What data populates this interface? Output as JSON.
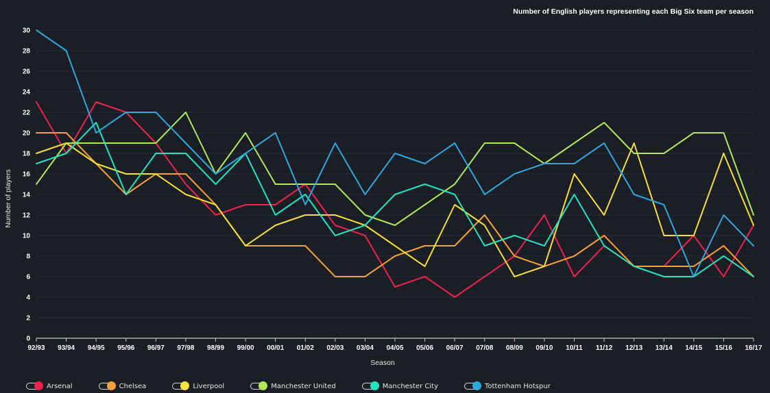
{
  "chart_data": {
    "type": "line",
    "title": "Number of English players representing each Big Six team per season",
    "xlabel": "Season",
    "ylabel": "Number of players",
    "ylim": [
      0,
      30
    ],
    "yticks": [
      0,
      2,
      4,
      6,
      8,
      10,
      12,
      14,
      16,
      18,
      20,
      22,
      24,
      26,
      28,
      30
    ],
    "grid": true,
    "legend_position": "bottom-left",
    "categories": [
      "92/93",
      "93/94",
      "94/95",
      "95/96",
      "96/97",
      "97/98",
      "98/99",
      "99/00",
      "00/01",
      "01/02",
      "02/03",
      "03/04",
      "04/05",
      "05/06",
      "06/07",
      "07/08",
      "08/09",
      "09/10",
      "10/11",
      "11/12",
      "12/13",
      "13/14",
      "14/15",
      "15/16",
      "16/17"
    ],
    "series": [
      {
        "name": "Arsenal",
        "color": "#f0234f",
        "values": [
          23,
          18,
          23,
          22,
          19,
          15,
          12,
          13,
          13,
          15,
          11,
          10,
          5,
          6,
          4,
          6,
          8,
          12,
          6,
          9,
          7,
          7,
          10,
          6,
          11
        ]
      },
      {
        "name": "Chelsea",
        "color": "#f6a23a",
        "values": [
          20,
          20,
          17,
          14,
          16,
          16,
          13,
          9,
          9,
          9,
          6,
          6,
          8,
          9,
          9,
          12,
          8,
          7,
          8,
          10,
          7,
          7,
          7,
          9,
          6
        ]
      },
      {
        "name": "Liverpool",
        "color": "#f7e03a",
        "values": [
          18,
          19,
          17,
          16,
          16,
          14,
          13,
          9,
          11,
          12,
          12,
          11,
          9,
          7,
          13,
          11,
          6,
          7,
          16,
          12,
          19,
          10,
          10,
          18,
          11
        ]
      },
      {
        "name": "Manchester United",
        "color": "#b2e95b",
        "values": [
          15,
          19,
          19,
          19,
          19,
          22,
          16,
          20,
          15,
          15,
          15,
          12,
          11,
          13,
          15,
          19,
          19,
          17,
          19,
          21,
          18,
          18,
          20,
          20,
          12
        ]
      },
      {
        "name": "Manchester City",
        "color": "#22e6c2",
        "values": [
          17,
          18,
          21,
          14,
          18,
          18,
          15,
          18,
          12,
          14,
          10,
          11,
          14,
          15,
          14,
          9,
          10,
          9,
          14,
          9,
          7,
          6,
          6,
          8,
          6
        ]
      },
      {
        "name": "Tottenham Hotspur",
        "color": "#2ea8e0",
        "values": [
          30,
          28,
          20,
          22,
          22,
          19,
          16,
          18,
          20,
          13,
          19,
          14,
          18,
          17,
          19,
          14,
          16,
          17,
          17,
          19,
          14,
          13,
          6,
          12,
          9
        ]
      }
    ]
  }
}
